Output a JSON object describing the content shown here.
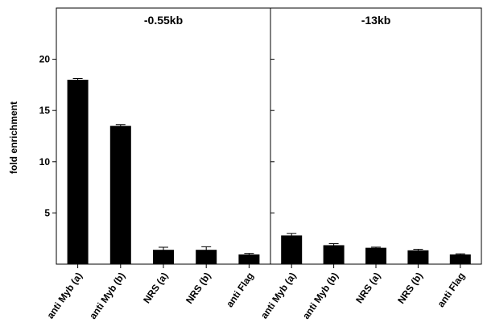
{
  "chart_data": {
    "type": "bar",
    "ylabel": "fold enrichment",
    "ylim": [
      0,
      25
    ],
    "yticks": [
      5,
      10,
      15,
      20
    ],
    "grid": false,
    "panels": [
      {
        "title": "-0.55kb",
        "categories": [
          "anti Myb (a)",
          "anti Myb (b)",
          "NRS (a)",
          "NRS (b)",
          "anti Flag"
        ],
        "values": [
          18.0,
          13.5,
          1.4,
          1.4,
          0.95
        ],
        "errors": [
          0.12,
          0.12,
          0.25,
          0.3,
          0.1
        ]
      },
      {
        "title": "-13kb",
        "categories": [
          "anti Myb (a)",
          "anti Myb (b)",
          "NRS (a)",
          "NRS (b)",
          "anti Flag"
        ],
        "values": [
          2.8,
          1.85,
          1.6,
          1.35,
          0.95
        ],
        "errors": [
          0.2,
          0.15,
          0.06,
          0.1,
          0.06
        ]
      }
    ]
  }
}
